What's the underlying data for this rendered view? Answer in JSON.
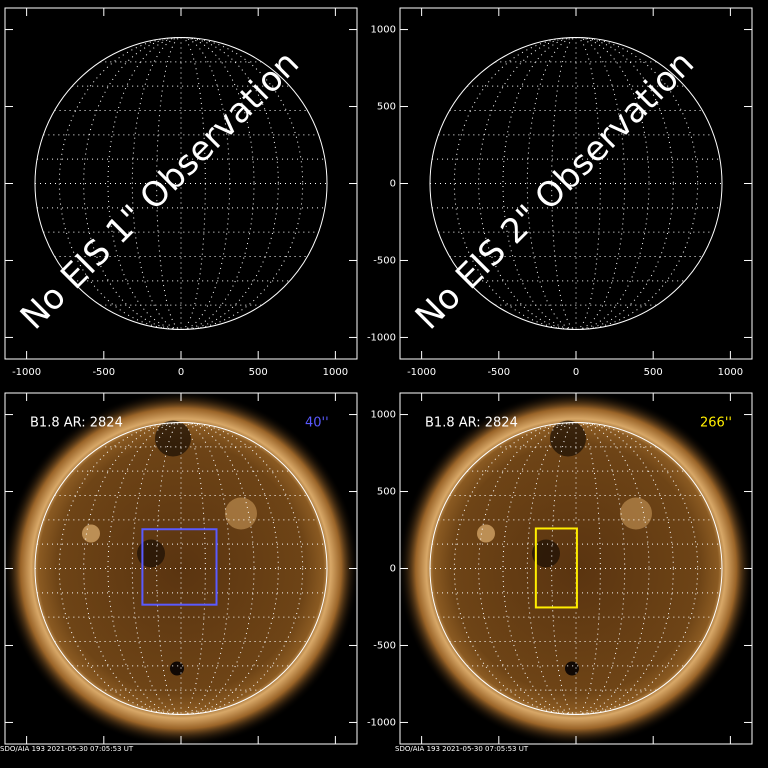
{
  "chart_data": [
    {
      "type": "image",
      "xlim": [
        -1140,
        1140
      ],
      "ylim": [
        -1140,
        1140
      ],
      "xticks": [
        -1000,
        -500,
        0,
        500,
        1000
      ],
      "yticks": [
        -1000,
        -500,
        0,
        500,
        1000
      ],
      "x_tick_labels": true,
      "y_tick_labels": false,
      "annotation": "No EIS 1\" Observation"
    },
    {
      "type": "image",
      "xlim": [
        -1140,
        1140
      ],
      "ylim": [
        -1140,
        1140
      ],
      "xticks": [
        -1000,
        -500,
        0,
        500,
        1000
      ],
      "yticks": [
        -1000,
        -500,
        0,
        500,
        1000
      ],
      "x_tick_labels": true,
      "y_tick_labels": true,
      "annotation": "No EIS 2\" Observation"
    },
    {
      "type": "image",
      "xlim": [
        -1140,
        1140
      ],
      "ylim": [
        -1140,
        1140
      ],
      "xticks": [
        -1000,
        -500,
        0,
        500,
        1000
      ],
      "yticks": [
        -1000,
        -500,
        0,
        500,
        1000
      ],
      "x_tick_labels": false,
      "y_tick_labels": false,
      "flare": "B1.8 AR: 2824",
      "fov_label": "40''",
      "box": {
        "x": [
          -250,
          230
        ],
        "y": [
          -235,
          255
        ],
        "color": "#5a5aff"
      },
      "footer": "SDO/AIA 193   2021-05-30 07:05:53 UT"
    },
    {
      "type": "image",
      "xlim": [
        -1140,
        1140
      ],
      "ylim": [
        -1140,
        1140
      ],
      "xticks": [
        -1000,
        -500,
        0,
        500,
        1000
      ],
      "yticks": [
        -1000,
        -500,
        0,
        500,
        1000
      ],
      "x_tick_labels": false,
      "y_tick_labels": true,
      "flare": "B1.8 AR: 2824",
      "fov_label": "266''",
      "box": {
        "x": [
          -260,
          6
        ],
        "y": [
          -253,
          260
        ],
        "color": "#ffee00"
      },
      "footer": "SDO/AIA 193   2021-05-30 07:05:53 UT"
    }
  ]
}
